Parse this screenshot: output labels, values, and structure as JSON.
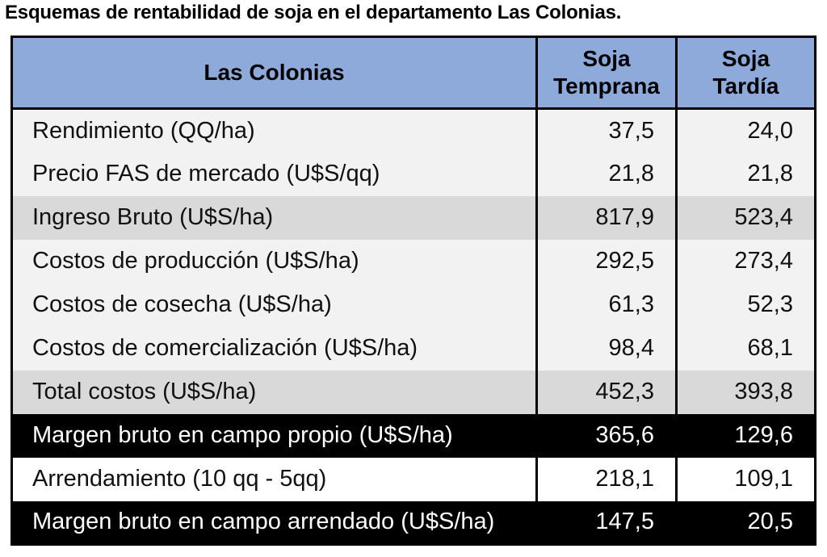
{
  "title": "Esquemas de rentabilidad de soja en el departamento Las Colonias.",
  "table": {
    "headers": {
      "label": "Las Colonias",
      "col1_line1": "Soja",
      "col1_line2": "Temprana",
      "col2_line1": "Soja",
      "col2_line2": "Tardía"
    },
    "rows": [
      {
        "label": "Rendimiento (QQ/ha)",
        "temprana": "37,5",
        "tardia": "24,0",
        "style": "light"
      },
      {
        "label": "Precio FAS de mercado (U$S/qq)",
        "temprana": "21,8",
        "tardia": "21,8",
        "style": "light"
      },
      {
        "label": "Ingreso Bruto (U$S/ha)",
        "temprana": "817,9",
        "tardia": "523,4",
        "style": "gray"
      },
      {
        "label": "Costos de producción (U$S/ha)",
        "temprana": "292,5",
        "tardia": "273,4",
        "style": "light"
      },
      {
        "label": "Costos de cosecha (U$S/ha)",
        "temprana": "61,3",
        "tardia": "52,3",
        "style": "light"
      },
      {
        "label": "Costos de comercialización (U$S/ha)",
        "temprana": "98,4",
        "tardia": "68,1",
        "style": "light"
      },
      {
        "label": "Total costos (U$S/ha)",
        "temprana": "452,3",
        "tardia": "393,8",
        "style": "gray"
      },
      {
        "label": "Margen bruto en campo propio (U$S/ha)",
        "temprana": "365,6",
        "tardia": "129,6",
        "style": "black"
      },
      {
        "label": "Arrendamiento (10 qq - 5qq)",
        "temprana": "218,1",
        "tardia": "109,1",
        "style": "white"
      },
      {
        "label": "Margen bruto en campo arrendado (U$S/ha)",
        "temprana": "147,5",
        "tardia": "20,5",
        "style": "black"
      }
    ]
  }
}
